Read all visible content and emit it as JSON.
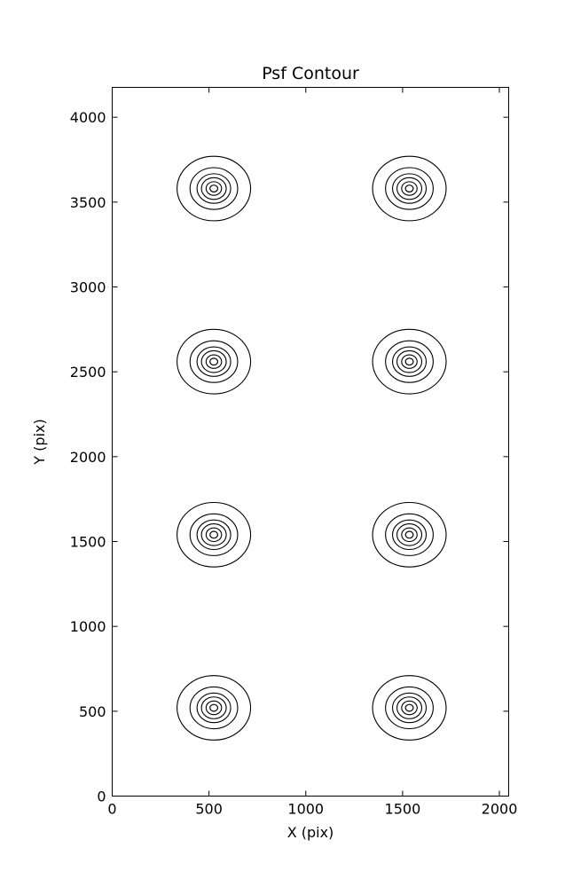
{
  "figure": {
    "background": "#ffffff",
    "line_color": "#000000"
  },
  "chart_data": {
    "type": "contour",
    "title": "Psf Contour",
    "xlabel": "X (pix)",
    "ylabel": "Y (pix)",
    "xlim": [
      0,
      2048
    ],
    "ylim": [
      0,
      4176
    ],
    "x_ticks": [
      0,
      500,
      1000,
      1500,
      2000
    ],
    "y_ticks": [
      0,
      500,
      1000,
      1500,
      2000,
      2500,
      3000,
      3500,
      4000
    ],
    "grid": false,
    "legend": null,
    "contour_line_color": "#000000",
    "psf_centers": [
      {
        "x": 525,
        "y": 520
      },
      {
        "x": 1535,
        "y": 520
      },
      {
        "x": 525,
        "y": 1540
      },
      {
        "x": 1535,
        "y": 1540
      },
      {
        "x": 525,
        "y": 2560
      },
      {
        "x": 1535,
        "y": 2560
      },
      {
        "x": 525,
        "y": 3580
      },
      {
        "x": 1535,
        "y": 3580
      }
    ],
    "contour_radii_pix": [
      190,
      123,
      87,
      64,
      40,
      20
    ]
  }
}
